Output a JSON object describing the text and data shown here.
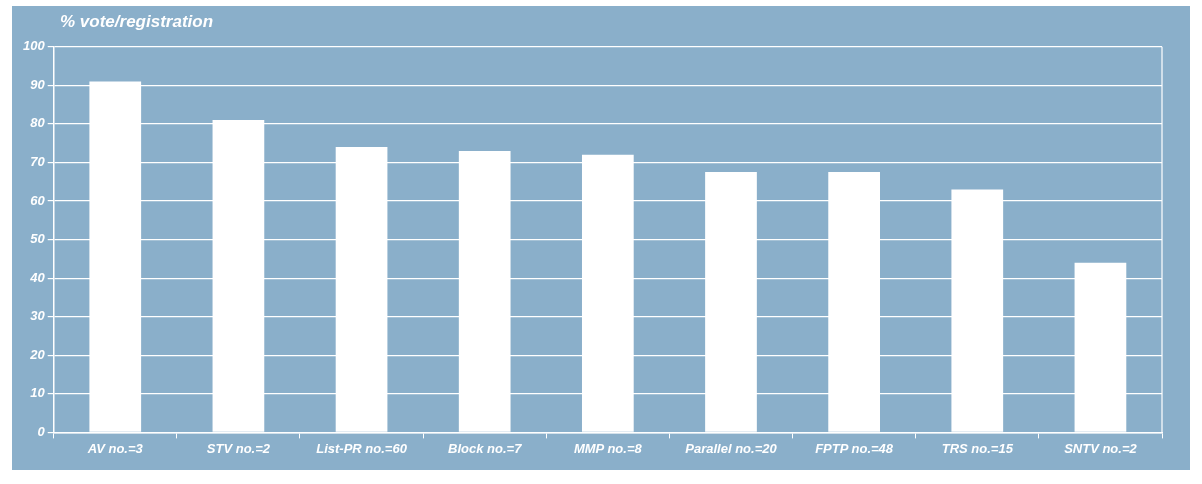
{
  "chart_data": {
    "type": "bar",
    "title": "% vote/registration",
    "categories": [
      "AV no.=3",
      "STV no.=2",
      "List-PR no.=60",
      "Block no.=7",
      "MMP no.=8",
      "Parallel no.=20",
      "FPTP no.=48",
      "TRS no.=15",
      "SNTV no.=2"
    ],
    "values": [
      91,
      81,
      74,
      73,
      72,
      67.5,
      67.5,
      63,
      44
    ],
    "color": "#ffffff",
    "ylim": [
      0,
      100
    ],
    "yticks": [
      0,
      10,
      20,
      30,
      40,
      50,
      60,
      70,
      80,
      90,
      100
    ],
    "grid": "y",
    "legend": false
  }
}
